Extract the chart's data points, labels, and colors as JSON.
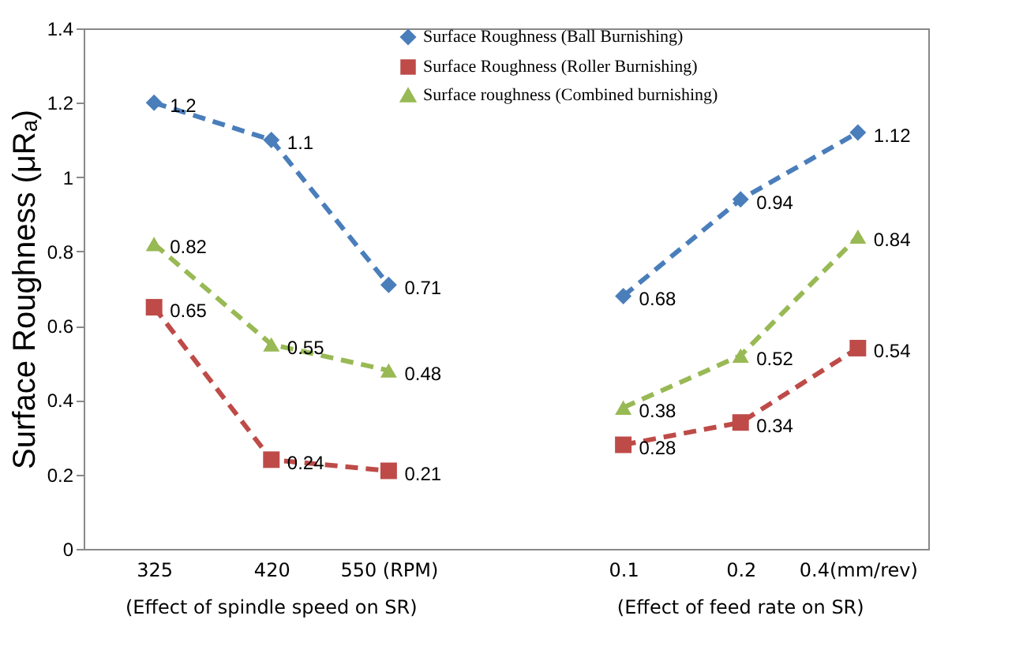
{
  "chart_data": {
    "type": "line",
    "ylabel": "Surface Roughness (μRₐ)",
    "categories": [
      "325",
      "420",
      "550 (RPM)",
      null,
      "0.1",
      "0.2",
      "0.4(mm/rev)"
    ],
    "series": [
      {
        "name": "Surface Roughness (Ball Burnishing)",
        "color": "#4a7ebb",
        "marker": "diamond",
        "values": [
          1.2,
          1.1,
          0.71,
          null,
          0.68,
          0.94,
          1.12
        ]
      },
      {
        "name": "Surface Roughness (Roller Burnishing)",
        "color": "#be4b48",
        "marker": "square",
        "values": [
          0.65,
          0.24,
          0.21,
          null,
          0.28,
          0.34,
          0.54
        ]
      },
      {
        "name": "Surface roughness (Combined burnishing)",
        "color": "#98b954",
        "marker": "triangle",
        "values": [
          0.82,
          0.55,
          0.48,
          null,
          0.38,
          0.52,
          0.84
        ]
      }
    ],
    "ylim": [
      0,
      1.4
    ],
    "yticks": [
      0,
      0.2,
      0.4,
      0.6,
      0.8,
      1,
      1.2,
      1.4
    ],
    "line_style": "dashed",
    "data_labels": true,
    "grid": false,
    "legend": "top",
    "annotations": [
      "(Effect of spindle speed on SR)",
      "(Effect of feed rate on SR)"
    ]
  }
}
